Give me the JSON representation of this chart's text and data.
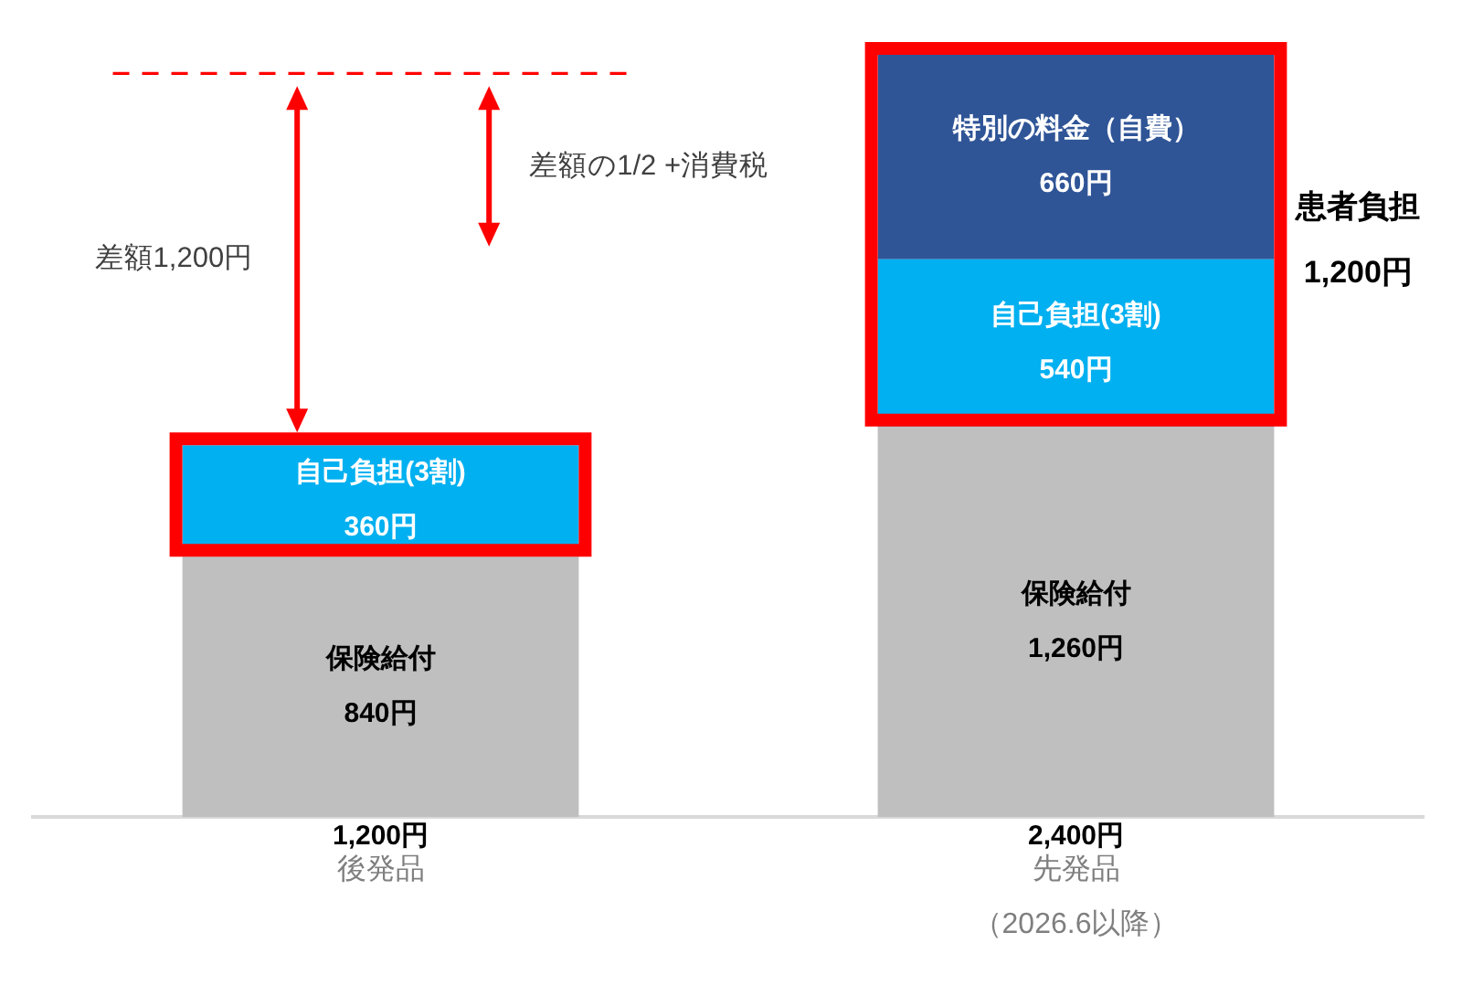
{
  "chart_data": {
    "type": "bar",
    "stacked": true,
    "categories": [
      "後発品",
      "先発品（2026.6以降）"
    ],
    "series": [
      {
        "name": "保険給付",
        "color": "#bfbfbf",
        "values": [
          840,
          1260
        ],
        "value_labels": [
          "840円",
          "1,260円"
        ]
      },
      {
        "name": "自己負担(3割)",
        "color": "#00b0f0",
        "values": [
          360,
          540
        ],
        "value_labels": [
          "360円",
          "540円"
        ]
      },
      {
        "name": "特別の料金（自費）",
        "color": "#2f5597",
        "values": [
          null,
          660
        ],
        "value_labels": [
          null,
          "660円"
        ]
      }
    ],
    "ref_lines": [
      {
        "axis": "y",
        "value": 2400,
        "color": "#ff0000",
        "line_style": "dashed"
      }
    ],
    "annotations": [
      "差額1,200円",
      "差額の1/2 +消費税",
      "患者負担\n1,200円",
      "1,200円",
      "2,400円"
    ],
    "grid": false,
    "legend": false
  }
}
